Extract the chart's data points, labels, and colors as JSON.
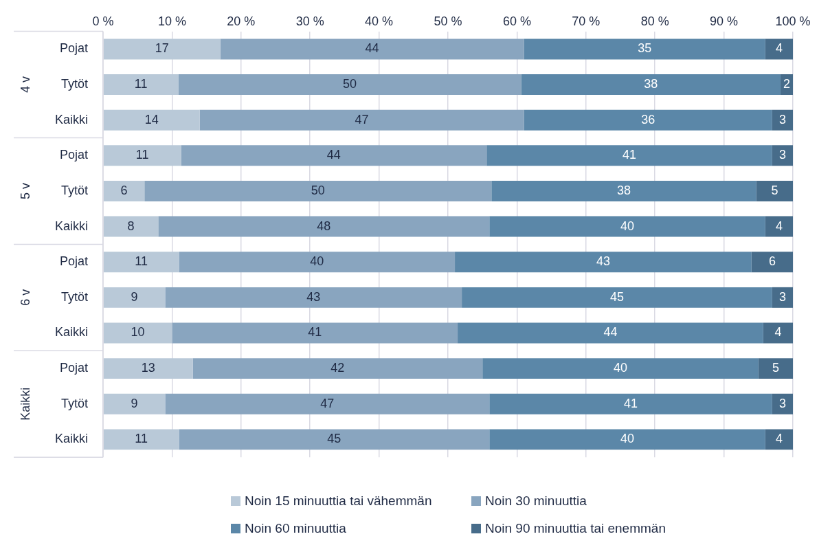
{
  "chart_data": {
    "type": "bar",
    "orientation": "horizontal",
    "stacked": true,
    "data_labels": true,
    "categories": [
      "Pojat",
      "Tytöt",
      "Kaikki",
      "Pojat",
      "Tytöt",
      "Kaikki",
      "Pojat",
      "Tytöt",
      "Kaikki",
      "Pojat",
      "Tytöt",
      "Kaikki"
    ],
    "annotations": [
      "4 v",
      "5 v",
      "6 v",
      "Kaikki"
    ],
    "xlim": [
      0,
      100
    ],
    "xticks": [
      {
        "value": 0,
        "label": "0 %"
      },
      {
        "value": 10,
        "label": "10 %"
      },
      {
        "value": 20,
        "label": "20 %"
      },
      {
        "value": 30,
        "label": "30 %"
      },
      {
        "value": 40,
        "label": "40 %"
      },
      {
        "value": 50,
        "label": "50 %"
      },
      {
        "value": 60,
        "label": "60 %"
      },
      {
        "value": 70,
        "label": "70 %"
      },
      {
        "value": 80,
        "label": "80 %"
      },
      {
        "value": 90,
        "label": "90 %"
      },
      {
        "value": 100,
        "label": "100 %"
      }
    ],
    "grid": "x",
    "legend": "bottom",
    "series": [
      {
        "name": "Noin 15 minuuttia tai vähemmän",
        "color": "#b9c9d8",
        "values": [
          17,
          10.9,
          14,
          11.3,
          6,
          8,
          11,
          9,
          10,
          13,
          9,
          11
        ],
        "value_labels": [
          "17",
          "11",
          "14",
          "11",
          "6",
          "8",
          "11",
          "9",
          "10",
          "13",
          "9",
          "11"
        ]
      },
      {
        "name": "Noin 30 minuuttia",
        "color": "#89a5bf",
        "values": [
          44,
          49.7,
          47,
          44.3,
          50.3,
          48,
          40,
          43,
          41.4,
          42,
          47,
          45
        ],
        "value_labels": [
          "44",
          "50",
          "47",
          "44",
          "50",
          "48",
          "40",
          "43",
          "41",
          "42",
          "47",
          "45"
        ]
      },
      {
        "name": "Noin 60 minuuttia",
        "color": "#5b87a8",
        "values": [
          35,
          37.6,
          36,
          41.4,
          38.4,
          40,
          43,
          45,
          44.3,
          40,
          41,
          40
        ],
        "value_labels": [
          "35",
          "38",
          "36",
          "41",
          "38",
          "40",
          "43",
          "45",
          "44",
          "40",
          "41",
          "40"
        ]
      },
      {
        "name": "Noin 90 minuuttia tai enemmän",
        "color": "#476c8a",
        "values": [
          4,
          1.8,
          3,
          3,
          5.3,
          4,
          6,
          3,
          4.3,
          5,
          3,
          4
        ],
        "value_labels": [
          "4",
          "2",
          "3",
          "3",
          "5",
          "4",
          "6",
          "3",
          "4",
          "5",
          "3",
          "4"
        ]
      }
    ]
  }
}
